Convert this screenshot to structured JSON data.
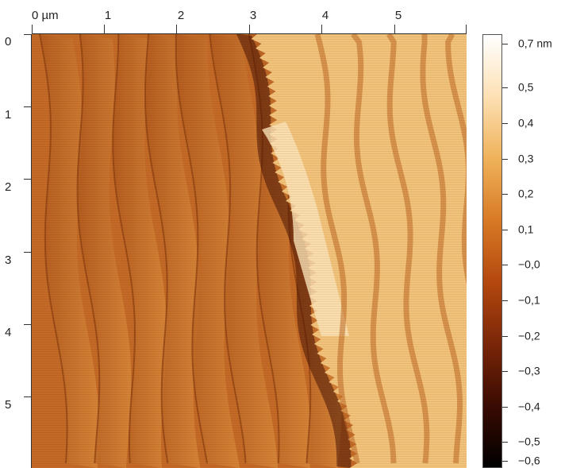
{
  "x_axis": {
    "labels": [
      "0 µm",
      "1",
      "2",
      "3",
      "4",
      "5"
    ]
  },
  "y_axis": {
    "labels": [
      "0",
      "1",
      "2",
      "3",
      "4",
      "5"
    ]
  },
  "colorbar": {
    "labels": [
      "0,7 nm",
      "0,5",
      "0,4",
      "0,3",
      "0,2",
      "0,1",
      "−0,0",
      "−0,1",
      "−0,2",
      "−0,3",
      "−0,4",
      "−0,5",
      "−0,6"
    ],
    "gradient": [
      "#000000",
      "#3a0b02",
      "#7a2608",
      "#b4480f",
      "#d87a25",
      "#efb25a",
      "#fde0b4",
      "#ffffff"
    ]
  },
  "image": {
    "description_colors": {
      "terrace_dark": "#b25a1e",
      "terrace_light": "#d9883a",
      "step_edge": "#8c3e10",
      "island": "#f2c27a",
      "island_bright": "#fbe3b8",
      "trench": "#4a1506"
    }
  }
}
